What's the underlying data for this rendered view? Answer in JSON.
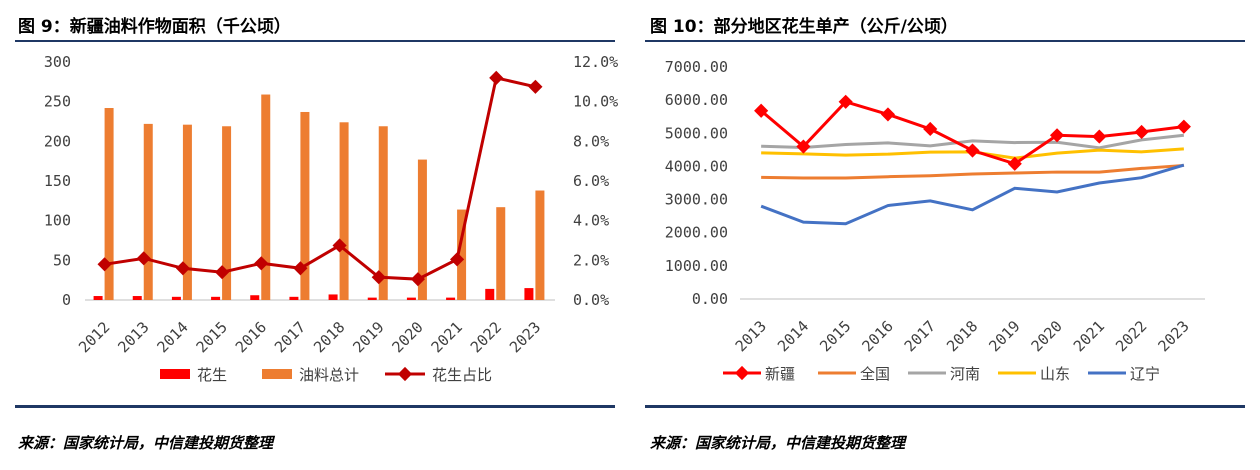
{
  "figures": [
    {
      "title": "图 9：新疆油料作物面积（千公顷）",
      "source": "来源：国家统计局，中信建投期货整理"
    },
    {
      "title": "图 10：部分地区花生单产（公斤/公顷）",
      "source": "来源：国家统计局，中信建投期货整理"
    }
  ],
  "chart_data": [
    {
      "type": "bar",
      "categories": [
        "2012",
        "2013",
        "2014",
        "2015",
        "2016",
        "2017",
        "2018",
        "2019",
        "2020",
        "2021",
        "2022",
        "2023"
      ],
      "series": [
        {
          "name": "花生",
          "type": "bar",
          "axis": "left",
          "color": "#ff0000",
          "values": [
            5,
            5,
            4,
            4,
            6,
            4,
            7,
            3,
            3,
            3,
            14,
            15
          ]
        },
        {
          "name": "油料总计",
          "type": "bar",
          "axis": "left",
          "color": "#ed7d31",
          "values": [
            242,
            222,
            221,
            219,
            259,
            237,
            224,
            219,
            177,
            114,
            117,
            138
          ]
        },
        {
          "name": "花生占比",
          "type": "line",
          "axis": "right",
          "color": "#c00000",
          "values": [
            1.8,
            2.1,
            1.6,
            1.4,
            1.85,
            1.6,
            2.75,
            1.15,
            1.05,
            2.05,
            11.2,
            10.75
          ]
        }
      ],
      "y_left": {
        "range": [
          0,
          300
        ],
        "ticks": [
          "0",
          "50",
          "100",
          "150",
          "200",
          "250",
          "300"
        ]
      },
      "y_right": {
        "range": [
          0,
          12
        ],
        "ticks": [
          "0.0%",
          "2.0%",
          "4.0%",
          "6.0%",
          "8.0%",
          "10.0%",
          "12.0%"
        ]
      },
      "grid": false,
      "legend_position": "bottom"
    },
    {
      "type": "line",
      "categories": [
        "2013",
        "2014",
        "2015",
        "2016",
        "2017",
        "2018",
        "2019",
        "2020",
        "2021",
        "2022",
        "2023"
      ],
      "series": [
        {
          "name": "新疆",
          "color": "#ff0000",
          "marker": "diamond",
          "values": [
            5680,
            4600,
            5950,
            5570,
            5130,
            4480,
            4080,
            4940,
            4900,
            5040,
            5200
          ]
        },
        {
          "name": "全国",
          "color": "#ed7d31",
          "values": [
            3670,
            3650,
            3650,
            3690,
            3720,
            3770,
            3800,
            3830,
            3830,
            3940,
            4030
          ]
        },
        {
          "name": "河南",
          "color": "#a5a5a5",
          "values": [
            4610,
            4570,
            4660,
            4710,
            4620,
            4770,
            4720,
            4730,
            4560,
            4800,
            4940
          ]
        },
        {
          "name": "山东",
          "color": "#ffc000",
          "values": [
            4410,
            4380,
            4340,
            4370,
            4430,
            4440,
            4250,
            4400,
            4490,
            4440,
            4530
          ]
        },
        {
          "name": "辽宁",
          "color": "#4472c4",
          "values": [
            2800,
            2320,
            2270,
            2820,
            2960,
            2690,
            3340,
            3230,
            3500,
            3660,
            4040
          ]
        }
      ],
      "y": {
        "range": [
          0,
          7000
        ],
        "ticks": [
          "0.00",
          "1000.00",
          "2000.00",
          "3000.00",
          "4000.00",
          "5000.00",
          "6000.00",
          "7000.00"
        ]
      },
      "grid": false,
      "legend_position": "bottom"
    }
  ]
}
